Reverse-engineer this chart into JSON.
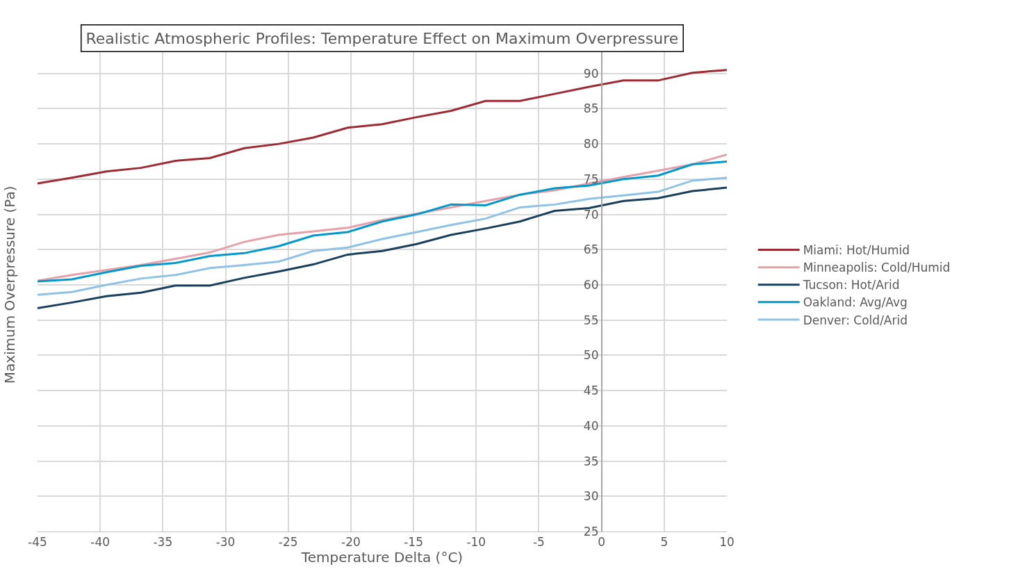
{
  "chart_data": {
    "type": "line",
    "title": "Realistic Atmospheric Profiles: Temperature Effect on Maximum Overpressure",
    "xlabel": "Temperature Delta (°C)",
    "ylabel": "Maximum Overpressure (Pa)",
    "x": [
      -45,
      -42.25,
      -39.5,
      -36.75,
      -34,
      -31.25,
      -28.5,
      -25.75,
      -23,
      -20.25,
      -17.5,
      -14.75,
      -12,
      -9.25,
      -6.5,
      -3.75,
      -1,
      1.75,
      4.5,
      7.25,
      10
    ],
    "series": [
      {
        "name": "Miami: Hot/Humid",
        "color": "#9e2a35",
        "values": [
          74.4,
          75.2,
          76.1,
          76.6,
          77.6,
          78.0,
          79.4,
          80.0,
          80.9,
          82.3,
          82.8,
          83.8,
          84.7,
          86.1,
          86.1,
          87.1,
          88.1,
          89.0,
          89.0,
          90.1,
          90.5
        ]
      },
      {
        "name": "Minneapolis: Cold/Humid",
        "color": "#e8a0a8",
        "values": [
          60.6,
          61.4,
          null,
          62.8,
          63.7,
          64.6,
          66.1,
          67.1,
          67.6,
          68.1,
          69.2,
          70.1,
          71.0,
          71.9,
          72.8,
          73.4,
          74.4,
          75.3,
          76.2,
          77.1,
          78.5
        ]
      },
      {
        "name": "Tucson: Hot/Arid",
        "color": "#183f5c",
        "values": [
          56.7,
          57.5,
          58.4,
          58.9,
          59.9,
          59.9,
          61.0,
          61.9,
          62.9,
          64.3,
          64.8,
          65.8,
          67.1,
          68.0,
          69.0,
          70.5,
          70.9,
          71.9,
          72.3,
          73.3,
          73.8
        ]
      },
      {
        "name": "Oakland: Avg/Avg",
        "color": "#0099cc",
        "values": [
          60.5,
          60.8,
          61.8,
          62.7,
          63.1,
          64.1,
          64.5,
          65.5,
          67.0,
          67.5,
          69.0,
          70.0,
          71.4,
          71.3,
          72.8,
          73.7,
          74.1,
          75.0,
          75.5,
          77.1,
          77.5
        ]
      },
      {
        "name": "Denver: Cold/Arid",
        "color": "#8ec3e6",
        "values": [
          58.6,
          59.0,
          60.0,
          60.9,
          61.4,
          62.4,
          62.8,
          63.3,
          64.8,
          65.3,
          66.5,
          67.5,
          68.5,
          69.4,
          71.0,
          71.4,
          72.2,
          72.7,
          73.2,
          74.8,
          75.2
        ]
      }
    ],
    "xlim": [
      -45,
      10
    ],
    "xticks": [
      -45,
      -40,
      -35,
      -30,
      -25,
      -20,
      -15,
      -10,
      -5,
      0,
      5,
      10
    ],
    "ylim": [
      25,
      95
    ],
    "yticks": [
      25,
      30,
      35,
      40,
      45,
      50,
      55,
      60,
      65,
      70,
      75,
      80,
      85,
      90
    ],
    "grid": true,
    "legend": "right",
    "marker": "none",
    "line_style": "solid"
  }
}
